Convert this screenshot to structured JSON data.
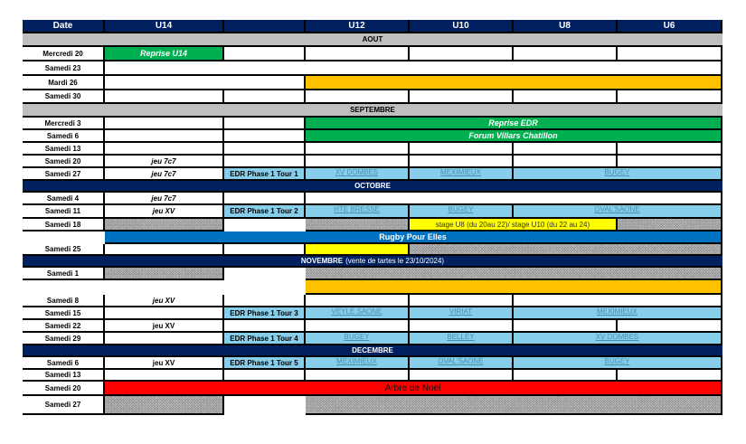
{
  "header": [
    "Date",
    "U14",
    "",
    "U12",
    "U10",
    "U8",
    "U6"
  ],
  "colors": {
    "navy": "#002060",
    "gray": "#bfbfbf",
    "green": "#00b050",
    "orange": "#ffc000",
    "light_blue": "#87ceeb",
    "yellow": "#ffff00",
    "blue": "#0070c0",
    "red": "#ff0000"
  },
  "rows": [
    {
      "month": "AOUT",
      "style": "gray"
    },
    {
      "date": "Mercredi 20",
      "cells": [
        {
          "t": "Reprise U14",
          "s": "green"
        },
        {
          "s": "white"
        },
        {
          "s": "white"
        },
        {
          "s": "white"
        },
        {
          "s": "white"
        },
        {
          "s": "white"
        }
      ]
    },
    {
      "date": "Samedi 23",
      "cells": [
        {
          "s": "white",
          "span": 6
        }
      ]
    },
    {
      "date": "Mardi 26",
      "cells": [
        {
          "s": "white",
          "span": 2
        },
        {
          "s": "orange",
          "span": 4
        }
      ]
    },
    {
      "date": "Samedi 30",
      "cells": [
        {
          "s": "white"
        },
        {
          "s": "white"
        },
        {
          "s": "white"
        },
        {
          "s": "white"
        },
        {
          "s": "white"
        },
        {
          "s": "white"
        }
      ]
    },
    {
      "month": "SEPTEMBRE",
      "style": "gray"
    },
    {
      "date": "Mercredi 3",
      "cells": [
        {
          "s": "white"
        },
        {
          "s": "white"
        },
        {
          "t": "Reprise EDR",
          "s": "green",
          "span": 4
        }
      ]
    },
    {
      "date": "Samedi 6",
      "cells": [
        {
          "s": "white"
        },
        {
          "s": "white"
        },
        {
          "t": "Forum Villars Chatillon",
          "s": "green",
          "span": 4
        }
      ]
    },
    {
      "date": "Samedi 13",
      "cells": [
        {
          "s": "white"
        },
        {
          "s": "white"
        },
        {
          "s": "white"
        },
        {
          "s": "white"
        },
        {
          "s": "white"
        },
        {
          "s": "white"
        }
      ]
    },
    {
      "date": "Samedi 20",
      "cells": [
        {
          "t": "jeu 7c7",
          "s": "white italic"
        },
        {
          "s": "white"
        },
        {
          "s": "white"
        },
        {
          "s": "white"
        },
        {
          "s": "white"
        },
        {
          "s": "white"
        }
      ]
    },
    {
      "date": "Samedi 27",
      "cells": [
        {
          "t": "jeu 7c7",
          "s": "white italic"
        },
        {
          "t": "EDR Phase 1 Tour 1",
          "s": "lb"
        },
        {
          "t": "XV DOMBES",
          "s": "link"
        },
        {
          "t": "MEXIMIEUX",
          "s": "link"
        },
        {
          "t": "BUGEY",
          "s": "link",
          "span": 2
        }
      ]
    },
    {
      "month": "OCTOBRE",
      "style": "navy"
    },
    {
      "date": "Samedi 4",
      "cells": [
        {
          "t": "jeu 7c7",
          "s": "white italic"
        },
        {
          "s": "white"
        },
        {
          "s": "white",
          "span": 4
        }
      ]
    },
    {
      "date": "Samedi 11",
      "cells": [
        {
          "t": "jeu XV",
          "s": "white italic"
        },
        {
          "t": "EDR Phase 1 Tour 2",
          "s": "lb"
        },
        {
          "t": "HTE BRESSE",
          "s": "link"
        },
        {
          "t": "BUGEY",
          "s": "link"
        },
        {
          "t": "OVAL'SAONE",
          "s": "link",
          "span": 2
        }
      ]
    },
    {
      "date": "Samedi 18",
      "cells": [
        {
          "s": "hatch"
        },
        {
          "s": "empty"
        },
        {
          "s": "hatch"
        },
        {
          "t": "stage U8 (du 20au 22)/ stage U10 (du 22 au 24)",
          "s": "yellow",
          "span": 2
        },
        {
          "s": "hatch"
        }
      ]
    },
    {
      "date": "",
      "dateStyle": "empty",
      "cells": [
        {
          "t": "Rugby Pour Elles",
          "s": "blue",
          "span": 6
        }
      ]
    },
    {
      "date": "Samedi 25",
      "cells": [
        {
          "s": "white"
        },
        {
          "s": "white"
        },
        {
          "s": "yellow"
        },
        {
          "s": "hatch",
          "span": 3
        }
      ]
    },
    {
      "month": "NOVEMBRE",
      "note": "(vente de tartes le 23/10/2024)",
      "style": "navy"
    },
    {
      "date": "Samedi 1",
      "cells": [
        {
          "s": "hatch"
        },
        {
          "s": "empty"
        },
        {
          "s": "hatch",
          "span": 4
        }
      ]
    },
    {
      "date": "",
      "dateStyle": "empty",
      "cells": [
        {
          "s": "empty"
        },
        {
          "s": "empty"
        },
        {
          "s": "orange",
          "span": 4
        }
      ]
    },
    {
      "date": "Samedi 8",
      "cells": [
        {
          "t": "jeu XV",
          "s": "white italic"
        },
        {
          "s": "white"
        },
        {
          "s": "white"
        },
        {
          "s": "white"
        },
        {
          "s": "white",
          "span": 2
        }
      ]
    },
    {
      "date": "Samedi 15",
      "cells": [
        {
          "s": "white"
        },
        {
          "t": "EDR Phase 1 Tour 3",
          "s": "lb"
        },
        {
          "t": "VEYLE SAONE",
          "s": "link"
        },
        {
          "t": "VIRIAT",
          "s": "link"
        },
        {
          "t": "MEXIMIEUX",
          "s": "link",
          "span": 2
        }
      ]
    },
    {
      "date": "Samedi 22",
      "cells": [
        {
          "t": "jeu XV",
          "s": "white"
        },
        {
          "s": "white"
        },
        {
          "s": "white"
        },
        {
          "s": "white"
        },
        {
          "s": "white"
        },
        {
          "s": "white"
        }
      ]
    },
    {
      "date": "Samedi 29",
      "cells": [
        {
          "s": "white"
        },
        {
          "t": "EDR Phase 1 Tour 4",
          "s": "lb"
        },
        {
          "t": "BUGEY",
          "s": "link"
        },
        {
          "t": "BELLEY",
          "s": "link"
        },
        {
          "t": "XV DOMBES",
          "s": "link",
          "span": 2
        }
      ]
    },
    {
      "month": "DECEMBRE",
      "style": "navy"
    },
    {
      "date": "Samedi 6",
      "cells": [
        {
          "t": "jeu XV",
          "s": "white"
        },
        {
          "t": "EDR Phase 1 Tour 5",
          "s": "lb"
        },
        {
          "t": "MEXIMIEUX",
          "s": "link"
        },
        {
          "t": "OVAL'SAONE",
          "s": "link"
        },
        {
          "t": "BUGEY",
          "s": "link",
          "span": 2
        }
      ]
    },
    {
      "date": "Samedi 13",
      "cells": [
        {
          "s": "white"
        },
        {
          "s": "white"
        },
        {
          "s": "white"
        },
        {
          "s": "white"
        },
        {
          "s": "white"
        },
        {
          "s": "white"
        }
      ]
    },
    {
      "date": "Samedi 20",
      "cells": [
        {
          "t": "Arbre de Noël",
          "s": "red",
          "span": 6
        }
      ]
    },
    {
      "date": "Samedi 27",
      "cells": [
        {
          "s": "hatch"
        },
        {
          "s": "empty"
        },
        {
          "s": "hatch",
          "span": 4
        }
      ]
    }
  ]
}
